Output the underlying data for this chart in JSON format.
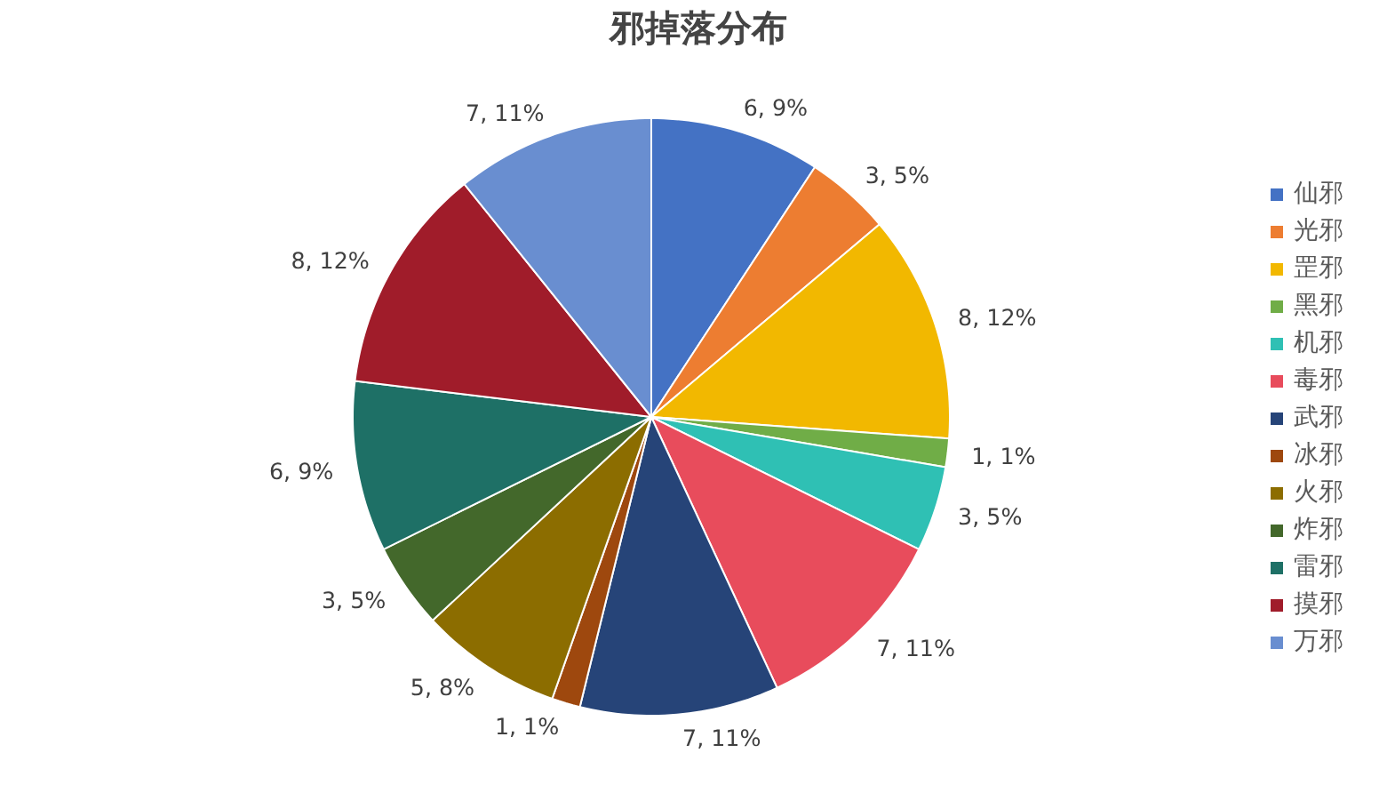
{
  "chart_data": {
    "type": "pie",
    "title": "邪掉落分布",
    "categories": [
      "仙邪",
      "光邪",
      "罡邪",
      "黑邪",
      "机邪",
      "毒邪",
      "武邪",
      "冰邪",
      "火邪",
      "炸邪",
      "雷邪",
      "摸邪",
      "万邪"
    ],
    "values": [
      6,
      3,
      8,
      1,
      3,
      7,
      7,
      1,
      5,
      3,
      6,
      8,
      7
    ],
    "colors": [
      "#4472c4",
      "#ed7d31",
      "#f2b800",
      "#70ad47",
      "#2fc0b4",
      "#e84c5c",
      "#264478",
      "#9e480e",
      "#8c6d00",
      "#43682b",
      "#1e7066",
      "#a01c2a",
      "#698ed0"
    ],
    "value_labels": [
      "6, 9%",
      "3, 5%",
      "8, 12%",
      "1, 1%",
      "3, 5%",
      "7, 11%",
      "7, 11%",
      "1, 1%",
      "5, 8%",
      "3, 5%",
      "6, 9%",
      "8, 12%",
      "7, 11%"
    ],
    "legend": "right"
  }
}
